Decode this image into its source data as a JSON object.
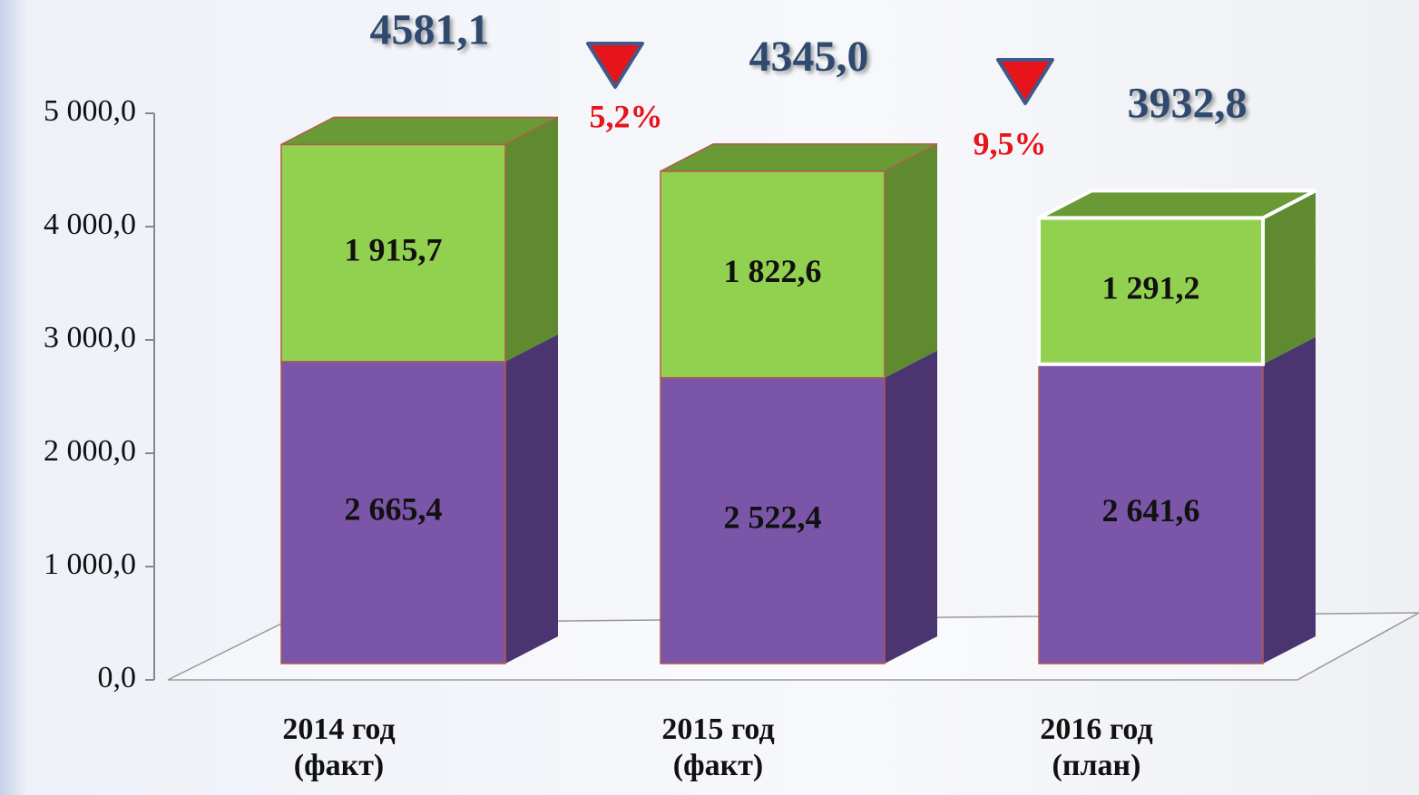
{
  "chart_data": {
    "type": "stacked-bar-3d",
    "categories": [
      "2014 год\n(факт)",
      "2015 год\n(факт)",
      "2016 год\n(план)"
    ],
    "series": [
      {
        "color": "#7a55a8",
        "values": [
          2665.4,
          2522.4,
          2641.6
        ],
        "value_labels": [
          "2 665,4",
          "2 522,4",
          "2 641,6"
        ]
      },
      {
        "color": "#92d050",
        "values": [
          1915.7,
          1822.6,
          1291.2
        ],
        "value_labels": [
          "1 915,7",
          "1 822,6",
          "1 291,2"
        ]
      }
    ],
    "totals": [
      4581.1,
      4345.0,
      3932.8
    ],
    "total_labels": [
      "4581,1",
      "4345,0",
      "3932,8"
    ],
    "changes": [
      5.2,
      9.5
    ],
    "change_labels": [
      "5,2%",
      "9,5%"
    ],
    "ylim": [
      0,
      5000
    ],
    "yticks": [
      {
        "value": 0,
        "label": "0,0"
      },
      {
        "value": 1000,
        "label": "1 000,0"
      },
      {
        "value": 2000,
        "label": "2 000,0"
      },
      {
        "value": 3000,
        "label": "3 000,0"
      },
      {
        "value": 4000,
        "label": "4 000,0"
      },
      {
        "value": 5000,
        "label": "5 000,0"
      }
    ]
  }
}
